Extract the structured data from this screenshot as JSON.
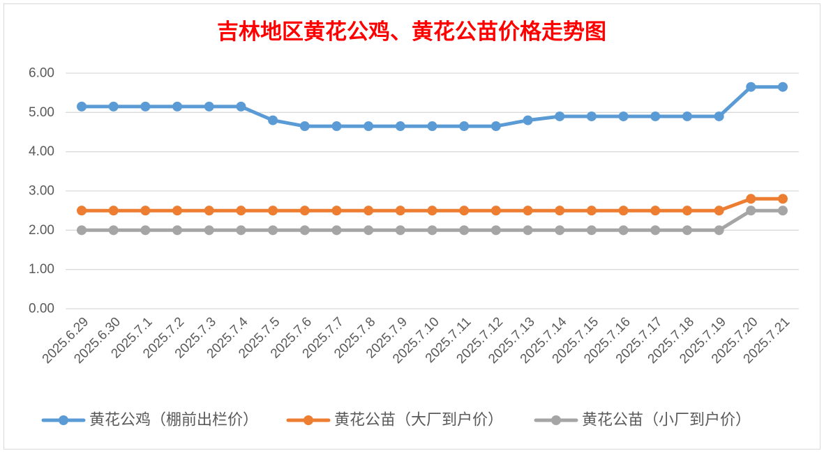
{
  "chart_data": {
    "type": "line",
    "title": "吉林地区黄花公鸡、黄花公苗价格走势图",
    "title_color": "#FF0000",
    "categories": [
      "2025.6.29",
      "2025.6.30",
      "2025.7.1",
      "2025.7.2",
      "2025.7.3",
      "2025.7.4",
      "2025.7.5",
      "2025.7.6",
      "2025.7.7",
      "2025.7.8",
      "2025.7.9",
      "2025.7.10",
      "2025.7.11",
      "2025.7.12",
      "2025.7.13",
      "2025.7.14",
      "2025.7.15",
      "2025.7.16",
      "2025.7.17",
      "2025.7.18",
      "2025.7.19",
      "2025.7.20",
      "2025.7.21"
    ],
    "series": [
      {
        "name": "黄花公鸡（棚前出栏价）",
        "color": "#5B9BD5",
        "values": [
          5.15,
          5.15,
          5.15,
          5.15,
          5.15,
          5.15,
          4.8,
          4.65,
          4.65,
          4.65,
          4.65,
          4.65,
          4.65,
          4.65,
          4.8,
          4.9,
          4.9,
          4.9,
          4.9,
          4.9,
          4.9,
          5.65,
          5.65
        ]
      },
      {
        "name": "黄花公苗（大厂到户价）",
        "color": "#ED7D31",
        "values": [
          2.5,
          2.5,
          2.5,
          2.5,
          2.5,
          2.5,
          2.5,
          2.5,
          2.5,
          2.5,
          2.5,
          2.5,
          2.5,
          2.5,
          2.5,
          2.5,
          2.5,
          2.5,
          2.5,
          2.5,
          2.5,
          2.8,
          2.8
        ]
      },
      {
        "name": "黄花公苗（小厂到户价）",
        "color": "#A5A5A5",
        "values": [
          2.0,
          2.0,
          2.0,
          2.0,
          2.0,
          2.0,
          2.0,
          2.0,
          2.0,
          2.0,
          2.0,
          2.0,
          2.0,
          2.0,
          2.0,
          2.0,
          2.0,
          2.0,
          2.0,
          2.0,
          2.0,
          2.5,
          2.5
        ]
      }
    ],
    "ylim": [
      0,
      6
    ],
    "yticks": [
      "0.00",
      "1.00",
      "2.00",
      "3.00",
      "4.00",
      "5.00",
      "6.00"
    ],
    "grid": true,
    "legend": "bottom"
  }
}
